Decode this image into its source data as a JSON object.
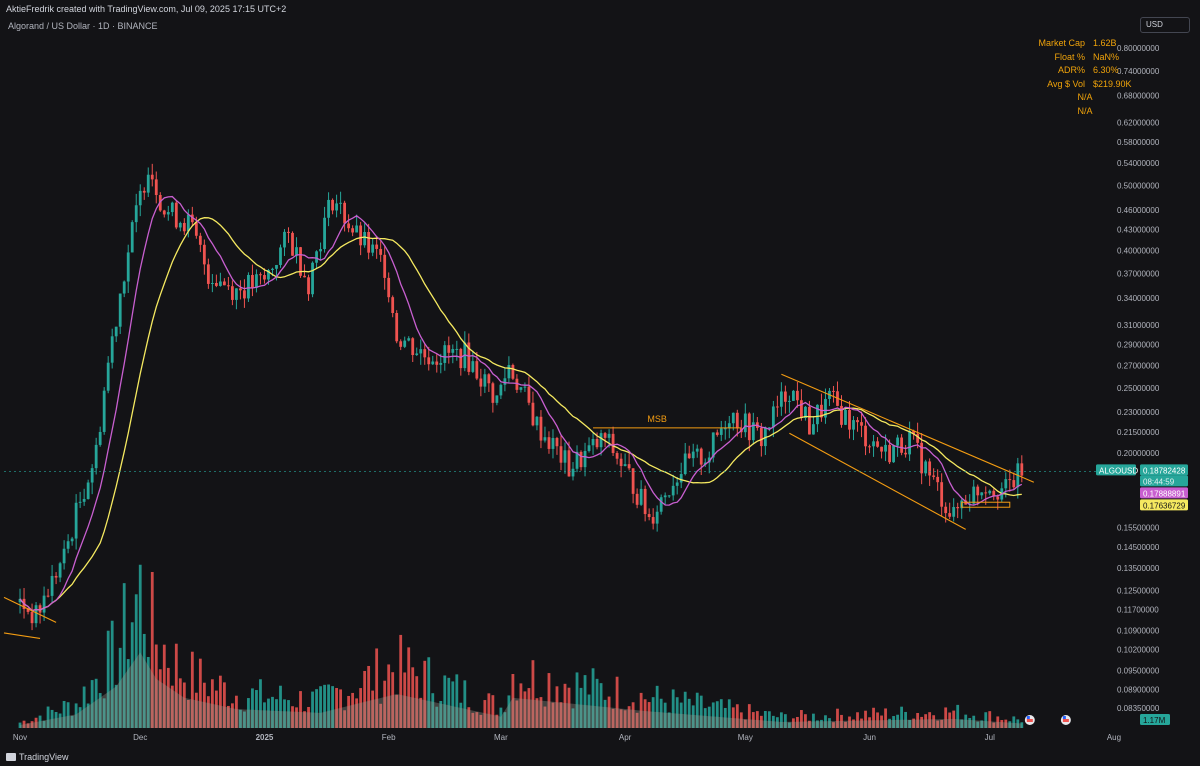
{
  "header": {
    "attribution": "AktieFredrik created with TradingView.com, Jul 09, 2025 17:15 UTC+2",
    "symbol_title": "Algorand / US Dollar · 1D · BINANCE",
    "currency": "USD"
  },
  "stats": [
    {
      "key": "Market Cap",
      "value": "1.62B"
    },
    {
      "key": "Float %",
      "value": "NaN%"
    },
    {
      "key": "ADR%",
      "value": "6.30%"
    },
    {
      "key": "Avg $ Vol",
      "value": "$219.90K"
    },
    {
      "key": "",
      "value": "N/A"
    },
    {
      "key": "",
      "value": "N/A"
    }
  ],
  "footer": {
    "brand": "TradingView"
  },
  "chart_data": {
    "type": "candlestick",
    "scale": "log",
    "x_ticks": [
      "Nov",
      "Dec",
      "2025",
      "Feb",
      "Mar",
      "Apr",
      "May",
      "Jun",
      "Jul",
      "Aug"
    ],
    "y_ticks": [
      "0.80000000",
      "0.74000000",
      "0.68000000",
      "0.62000000",
      "0.58000000",
      "0.54000000",
      "0.50000000",
      "0.46000000",
      "0.43000000",
      "0.40000000",
      "0.37000000",
      "0.34000000",
      "0.31000000",
      "0.29000000",
      "0.27000000",
      "0.25000000",
      "0.23000000",
      "0.21500000",
      "0.20000000",
      "0.15500000",
      "0.14500000",
      "0.13500000",
      "0.12500000",
      "0.11700000",
      "0.10900000",
      "0.10200000",
      "0.09500000",
      "0.08900000",
      "0.08350000"
    ],
    "ylim": [
      0.078,
      0.84
    ],
    "price_labels": {
      "symbol": "ALGOUSD",
      "last": "0.18782428",
      "countdown": "08:44:59",
      "ma_fast": "0.17888891",
      "ma_slow": "0.17636729",
      "volume": "1.17M"
    },
    "annotations": [
      {
        "text": "MSB"
      }
    ],
    "price_anchors": [
      {
        "date": "2024-11-01",
        "price": 0.12
      },
      {
        "date": "2024-11-05",
        "price": 0.114
      },
      {
        "date": "2024-11-12",
        "price": 0.14
      },
      {
        "date": "2024-11-20",
        "price": 0.2
      },
      {
        "date": "2024-11-25",
        "price": 0.32
      },
      {
        "date": "2024-12-01",
        "price": 0.48
      },
      {
        "date": "2024-12-03",
        "price": 0.54
      },
      {
        "date": "2024-12-07",
        "price": 0.46
      },
      {
        "date": "2024-12-13",
        "price": 0.44
      },
      {
        "date": "2024-12-18",
        "price": 0.37
      },
      {
        "date": "2024-12-25",
        "price": 0.35
      },
      {
        "date": "2025-01-01",
        "price": 0.36
      },
      {
        "date": "2025-01-07",
        "price": 0.42
      },
      {
        "date": "2025-01-12",
        "price": 0.36
      },
      {
        "date": "2025-01-18",
        "price": 0.48
      },
      {
        "date": "2025-01-24",
        "price": 0.42
      },
      {
        "date": "2025-01-31",
        "price": 0.38
      },
      {
        "date": "2025-02-03",
        "price": 0.3
      },
      {
        "date": "2025-02-10",
        "price": 0.28
      },
      {
        "date": "2025-02-20",
        "price": 0.28
      },
      {
        "date": "2025-02-28",
        "price": 0.24
      },
      {
        "date": "2025-03-03",
        "price": 0.27
      },
      {
        "date": "2025-03-10",
        "price": 0.22
      },
      {
        "date": "2025-03-18",
        "price": 0.19
      },
      {
        "date": "2025-03-27",
        "price": 0.21
      },
      {
        "date": "2025-04-03",
        "price": 0.18
      },
      {
        "date": "2025-04-07",
        "price": 0.16
      },
      {
        "date": "2025-04-15",
        "price": 0.19
      },
      {
        "date": "2025-04-22",
        "price": 0.2
      },
      {
        "date": "2025-04-27",
        "price": 0.23
      },
      {
        "date": "2025-05-05",
        "price": 0.21
      },
      {
        "date": "2025-05-12",
        "price": 0.25
      },
      {
        "date": "2025-05-17",
        "price": 0.22
      },
      {
        "date": "2025-05-22",
        "price": 0.24
      },
      {
        "date": "2025-05-28",
        "price": 0.22
      },
      {
        "date": "2025-06-05",
        "price": 0.2
      },
      {
        "date": "2025-06-11",
        "price": 0.21
      },
      {
        "date": "2025-06-16",
        "price": 0.185
      },
      {
        "date": "2025-06-22",
        "price": 0.16
      },
      {
        "date": "2025-06-24",
        "price": 0.17
      },
      {
        "date": "2025-06-30",
        "price": 0.18
      },
      {
        "date": "2025-07-05",
        "price": 0.176
      },
      {
        "date": "2025-07-09",
        "price": 0.188
      }
    ],
    "volume_anchors": [
      {
        "date": "2024-11-01",
        "volume": 0.04
      },
      {
        "date": "2024-11-15",
        "volume": 0.18
      },
      {
        "date": "2024-11-25",
        "volume": 0.55
      },
      {
        "date": "2024-12-01",
        "volume": 1.0
      },
      {
        "date": "2024-12-05",
        "volume": 0.65
      },
      {
        "date": "2024-12-12",
        "volume": 0.4
      },
      {
        "date": "2024-12-25",
        "volume": 0.25
      },
      {
        "date": "2025-01-15",
        "volume": 0.2
      },
      {
        "date": "2025-02-03",
        "volume": 0.45
      },
      {
        "date": "2025-03-01",
        "volume": 0.15
      },
      {
        "date": "2025-03-04",
        "volume": 0.4
      },
      {
        "date": "2025-04-07",
        "volume": 0.22
      },
      {
        "date": "2025-05-10",
        "volume": 0.08
      },
      {
        "date": "2025-06-22",
        "volume": 0.12
      },
      {
        "date": "2025-07-09",
        "volume": 0.06
      }
    ]
  },
  "colors": {
    "background": "#131316",
    "up": "#26a69a",
    "down": "#ef5350",
    "ma_fast": "#c85fd0",
    "ma_slow": "#f5e960",
    "trendline": "#f39c12",
    "stat_text": "#f0a30a",
    "axis_text": "#b2b5be"
  }
}
